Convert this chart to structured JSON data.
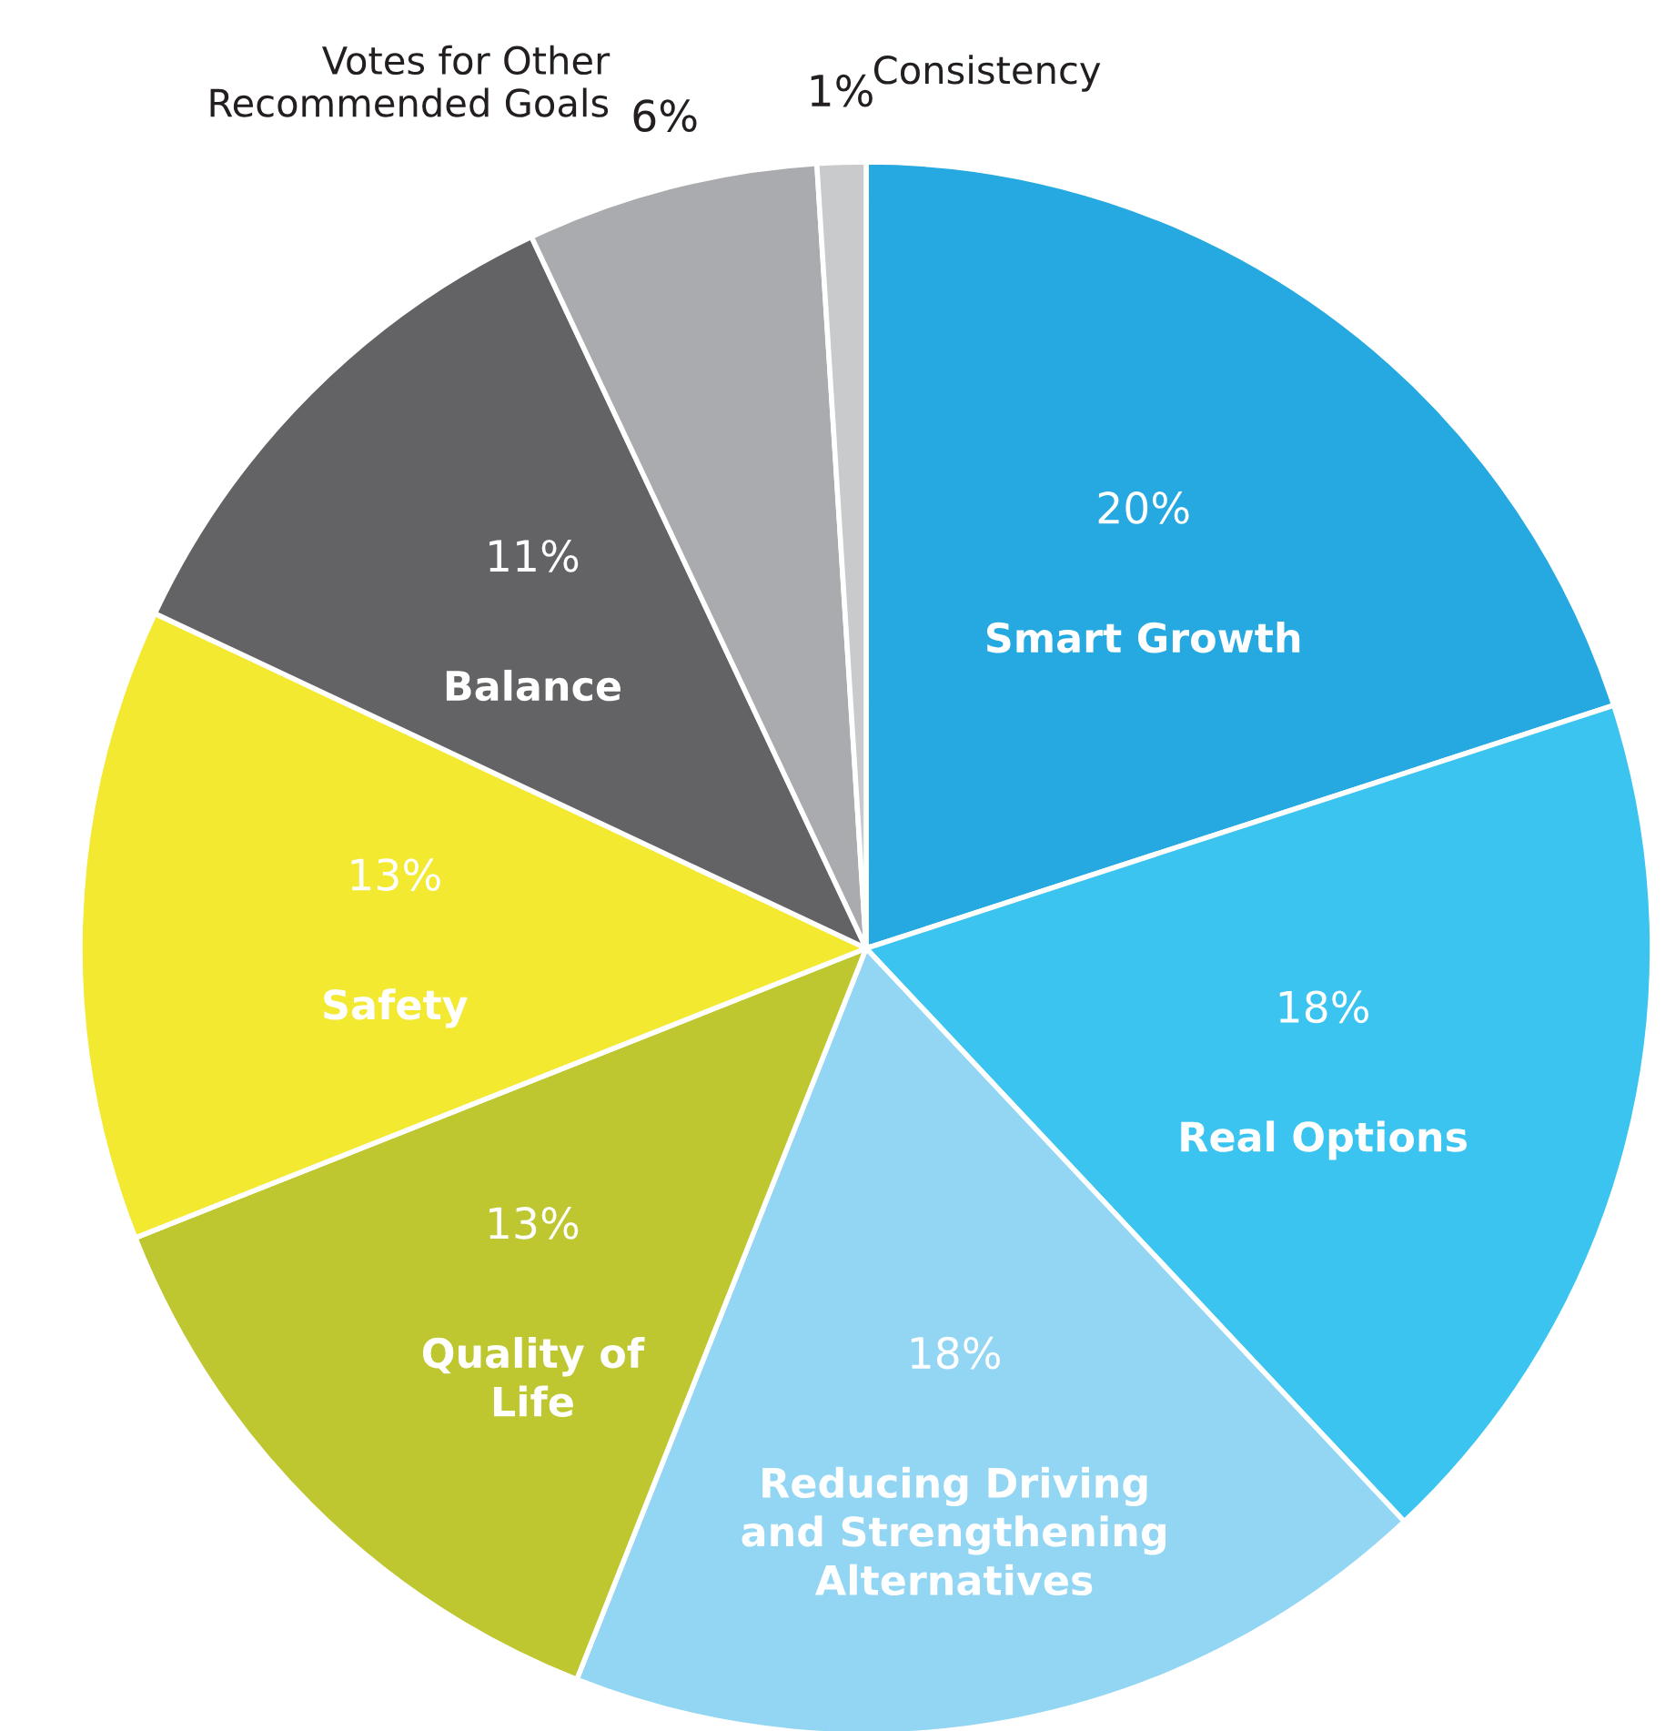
{
  "chart_data": {
    "type": "pie",
    "categories": [
      "Smart Growth",
      "Real Options",
      "Reducing Driving\nand Strengthening\nAlternatives",
      "Quality of\nLife",
      "Safety",
      "Balance",
      "Votes for Other\nRecommended Goals",
      "Consistency"
    ],
    "values": [
      20,
      18,
      18,
      13,
      13,
      11,
      6,
      1
    ],
    "value_labels": [
      "20%",
      "18%",
      "18%",
      "13%",
      "13%",
      "11%",
      "6%",
      "1%"
    ],
    "colors": [
      "#25a9e0",
      "#3bc4ef",
      "#92d6f4",
      "#bec630",
      "#f2e930",
      "#636365",
      "#a9abae",
      "#c8cacc"
    ]
  }
}
